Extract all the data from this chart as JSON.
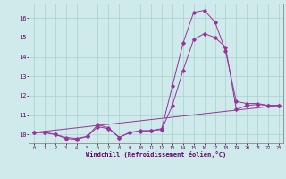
{
  "xlabel": "Windchill (Refroidissement éolien,°C)",
  "background_color": "#ceeaea",
  "grid_color": "#aacfcf",
  "line_color": "#993399",
  "yticks": [
    10,
    11,
    12,
    13,
    14,
    15,
    16
  ],
  "xticks": [
    0,
    1,
    2,
    3,
    4,
    5,
    6,
    7,
    8,
    9,
    10,
    11,
    12,
    13,
    14,
    15,
    16,
    17,
    18,
    19,
    20,
    21,
    22,
    23
  ],
  "series1_x": [
    0,
    1,
    2,
    3,
    4,
    5,
    6,
    7,
    8,
    9,
    10,
    11,
    12,
    13,
    14,
    15,
    16,
    17,
    18,
    19,
    20,
    21,
    22,
    23
  ],
  "series1_y": [
    10.1,
    10.1,
    10.0,
    9.8,
    9.75,
    9.9,
    10.5,
    10.35,
    9.85,
    10.1,
    10.2,
    10.2,
    10.3,
    12.5,
    14.7,
    16.3,
    16.4,
    15.8,
    14.3,
    11.7,
    11.6,
    11.6,
    11.5,
    11.5
  ],
  "series2_x": [
    0,
    1,
    2,
    3,
    4,
    5,
    6,
    7,
    8,
    9,
    10,
    11,
    12,
    13,
    14,
    15,
    16,
    17,
    18,
    19,
    20,
    21,
    22,
    23
  ],
  "series2_y": [
    10.1,
    10.1,
    10.0,
    9.85,
    9.8,
    9.9,
    10.4,
    10.3,
    9.85,
    10.1,
    10.15,
    10.2,
    10.25,
    11.5,
    13.3,
    14.9,
    15.2,
    15.0,
    14.5,
    11.3,
    11.5,
    11.55,
    11.5,
    11.5
  ],
  "series3_x": [
    0,
    23
  ],
  "series3_y": [
    10.1,
    11.5
  ],
  "xlim": [
    -0.5,
    23.4
  ],
  "ylim": [
    9.55,
    16.75
  ]
}
